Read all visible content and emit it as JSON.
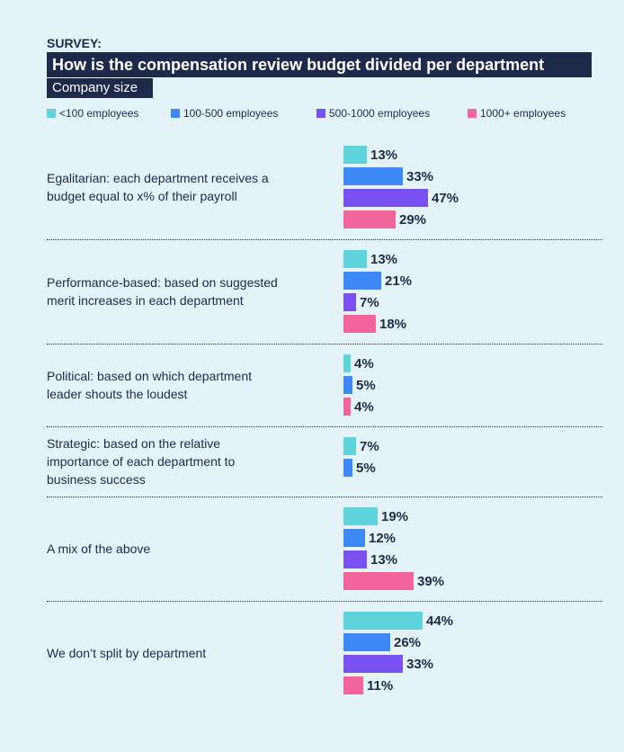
{
  "chart_data": {
    "type": "bar",
    "orientation": "horizontal",
    "kicker": "SURVEY:",
    "title": "How is the compensation review budget divided per department",
    "legend_title": "Company size",
    "categories": [
      "Egalitarian: each department receives a budget equal to x% of their payroll",
      "Performance-based: based on suggested merit increases in each department",
      "Political: based on which department leader shouts the loudest",
      "Strategic: based on the relative importance of each department to business success",
      "A mix of the above",
      "We don’t split by department"
    ],
    "series": [
      {
        "name": "<100 employees",
        "color": "#5ed3db",
        "values": [
          13,
          13,
          4,
          7,
          19,
          44
        ],
        "value_labels": [
          "13%",
          "13%",
          "4%",
          "7%",
          "19%",
          "44%"
        ]
      },
      {
        "name": "100-500 employees",
        "color": "#3d8af7",
        "values": [
          33,
          21,
          5,
          5,
          12,
          26
        ],
        "value_labels": [
          "33%",
          "21%",
          "5%",
          "5%",
          "12%",
          "26%"
        ]
      },
      {
        "name": "500-1000 employees",
        "color": "#7950f2",
        "values": [
          47,
          7,
          null,
          null,
          13,
          33
        ],
        "value_labels": [
          "47%",
          "7%",
          null,
          null,
          "13%",
          "33%"
        ]
      },
      {
        "name": "1000+ employees",
        "color": "#f2659a",
        "values": [
          29,
          18,
          4,
          null,
          39,
          11
        ],
        "value_labels": [
          "29%",
          "18%",
          "4%",
          null,
          "39%",
          "11%"
        ]
      }
    ]
  }
}
